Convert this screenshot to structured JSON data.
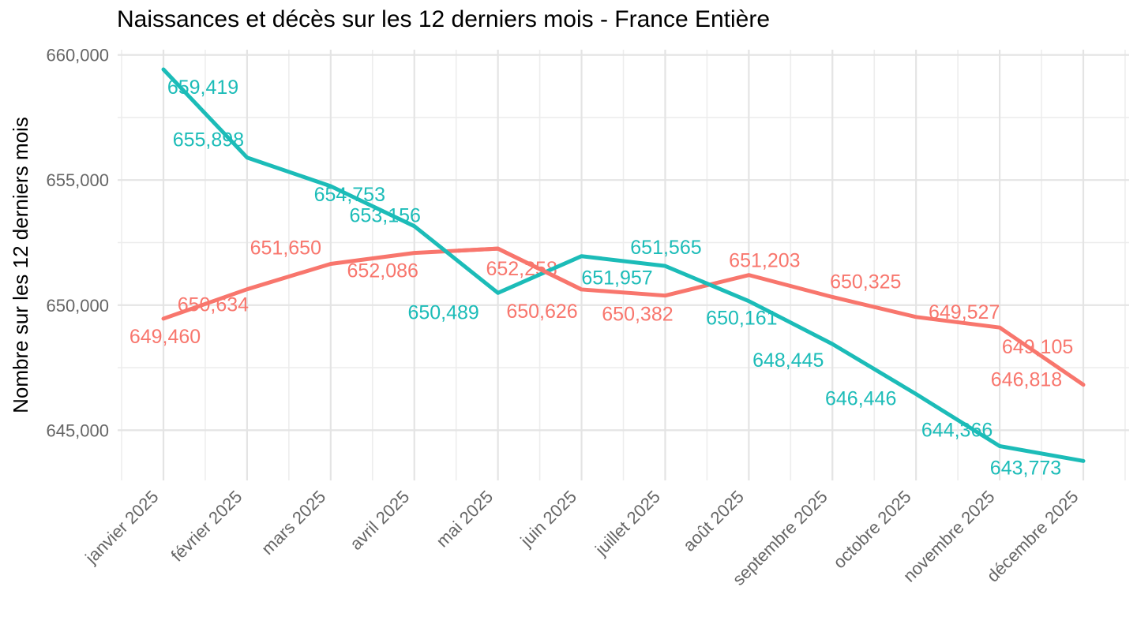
{
  "page": {
    "background": "#FFFFFF"
  },
  "chart_data": {
    "type": "line",
    "title": "Naissances et décès sur les 12 derniers mois - France Entière",
    "x_categories": [
      "janvier 2025",
      "février 2025",
      "mars 2025",
      "avril 2025",
      "mai 2025",
      "juin 2025",
      "juillet 2025",
      "août 2025",
      "septembre 2025",
      "octobre 2025",
      "novembre 2025",
      "décembre 2025"
    ],
    "y_axis": {
      "title": "Nombre sur les 12 derniers mois",
      "tick_values": [
        645000,
        650000,
        655000,
        660000
      ],
      "tick_labels": [
        "645,000",
        "650,000",
        "655,000",
        "660,000"
      ],
      "minor_tick_values": [
        647500,
        652500,
        657500
      ],
      "range": [
        642995,
        660208
      ]
    },
    "grid": true,
    "legend": "none",
    "point_labels_visible": true,
    "series": [
      {
        "name": "naissances",
        "color": "#1CBCB8",
        "values": [
          659419,
          655898,
          654753,
          653156,
          650489,
          651957,
          651565,
          650161,
          648445,
          646446,
          644366,
          643773
        ],
        "labels": [
          "659,419",
          "655,898",
          "654,753",
          "653,156",
          "650,489",
          "651,957",
          "651,565",
          "650,161",
          "648,445",
          "646,446",
          "644,366",
          "643,773"
        ],
        "label_offsets": [
          [
            50,
            22
          ],
          [
            -49,
            -23
          ],
          [
            24,
            10
          ],
          [
            -37,
            -14
          ],
          [
            -69,
            24
          ],
          [
            45,
            27
          ],
          [
            1,
            -24
          ],
          [
            -9,
            21
          ],
          [
            -56,
            20
          ],
          [
            -70,
            5
          ],
          [
            -54,
            -21
          ],
          [
            -73,
            8
          ]
        ]
      },
      {
        "name": "décès",
        "color": "#F8766D",
        "values": [
          649460,
          650634,
          651650,
          652086,
          652258,
          650626,
          650382,
          651203,
          650325,
          649527,
          649105,
          646818
        ],
        "labels": [
          "649,460",
          "650,634",
          "651,650",
          "652,086",
          "652,258",
          "650,626",
          "650,382",
          "651,203",
          "650,325",
          "649,527",
          "649,105",
          "646,818"
        ],
        "label_offsets": [
          [
            2,
            22
          ],
          [
            -43,
            19
          ],
          [
            -57,
            -21
          ],
          [
            -40,
            22
          ],
          [
            30,
            25
          ],
          [
            -50,
            27
          ],
          [
            -35,
            23
          ],
          [
            20,
            -19
          ],
          [
            42,
            -20
          ],
          [
            61,
            -7
          ],
          [
            48,
            24
          ],
          [
            -72,
            -7
          ]
        ]
      }
    ],
    "colors": {
      "grid_major": "#E4E4E4",
      "grid_minor": "#EDEDED",
      "axis_text": "#666666",
      "title_text": "#000000"
    }
  }
}
